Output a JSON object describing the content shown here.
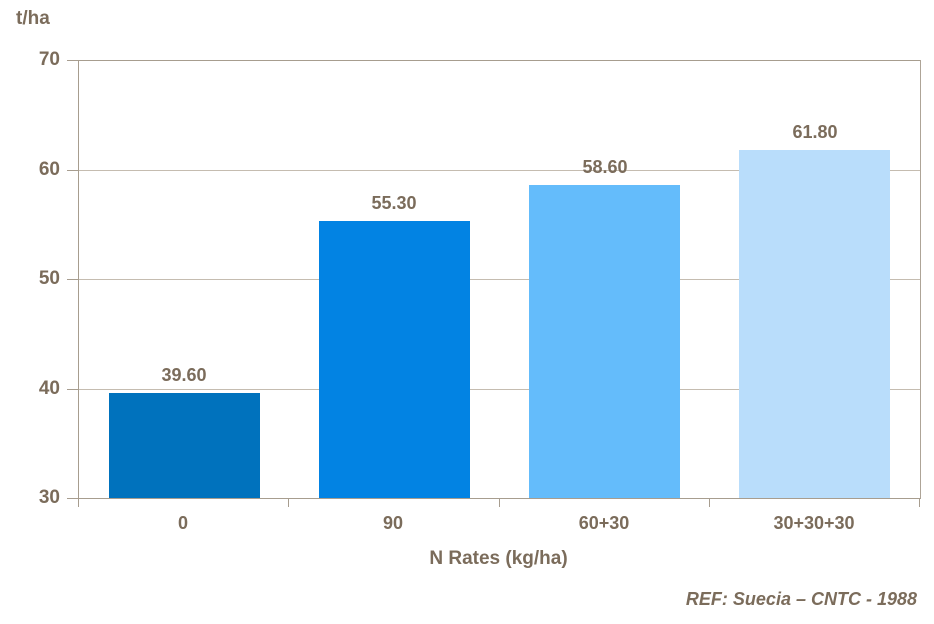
{
  "chart_data": {
    "type": "bar",
    "categories": [
      "0",
      "90",
      "60+30",
      "30+30+30"
    ],
    "values": [
      39.6,
      55.3,
      58.6,
      61.8
    ],
    "value_labels": [
      "39.60",
      "55.30",
      "58.60",
      "61.80"
    ],
    "title": "",
    "xlabel": "N Rates (kg/ha)",
    "ylabel": "t/ha",
    "ylim": [
      30,
      70
    ],
    "yticks": [
      30,
      40,
      50,
      60,
      70
    ],
    "grid": true,
    "legend": false,
    "bar_colors": [
      "#0072BD",
      "#0283E3",
      "#64BCFB",
      "#B9DDFB"
    ],
    "annotation": "REF: Suecia – CNTC - 1988"
  },
  "labels": {
    "y_axis_unit": "t/ha",
    "x_axis_title": "N Rates (kg/ha)",
    "reference": "REF: Suecia – CNTC - 1988"
  },
  "colors": {
    "background": "#FFFFFF",
    "text": "#7B6C5B",
    "gridline": "#C5BCB0",
    "axis": "#A79D8F"
  }
}
